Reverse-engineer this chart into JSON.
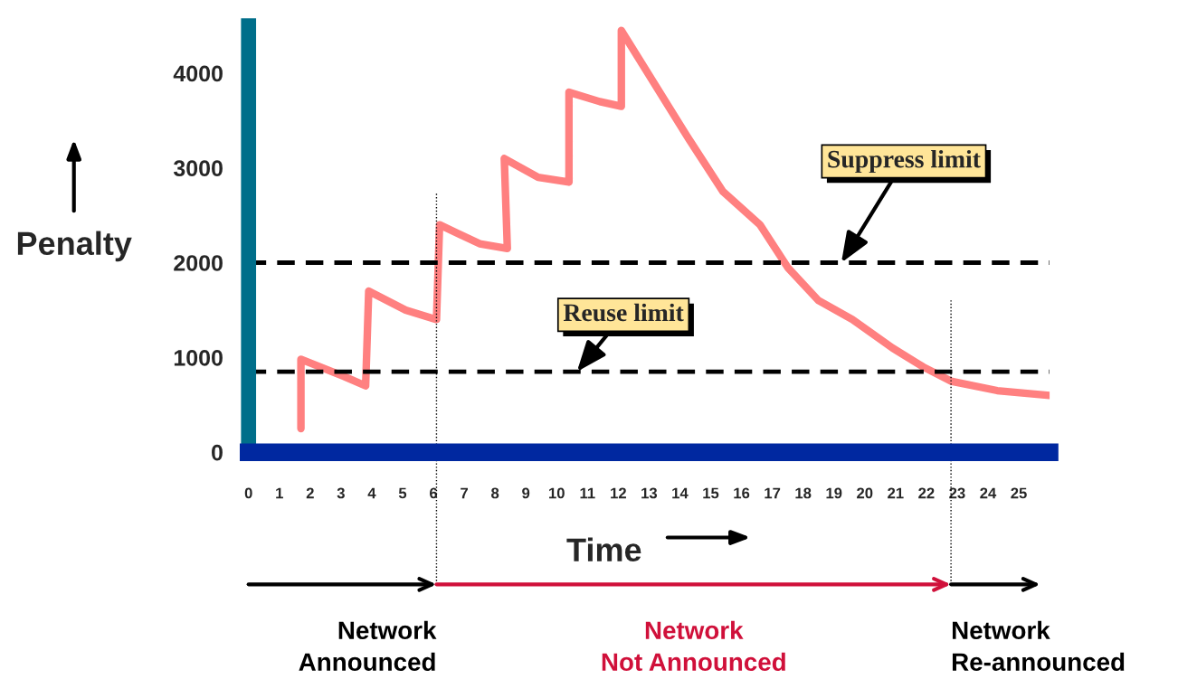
{
  "chart_data": {
    "type": "line",
    "xlabel": "Time",
    "ylabel": "Penalty",
    "x": [
      1.7,
      1.7,
      3.1,
      3.8,
      3.9,
      5.1,
      6.1,
      6.2,
      7.5,
      8.4,
      8.3,
      9.4,
      10.4,
      10.4,
      11.4,
      12.1,
      12.1,
      14.3,
      15.4,
      16.6,
      17.5,
      18.5,
      19.6,
      20.9,
      21.9,
      22.8,
      24.3,
      26.0
    ],
    "series": [
      {
        "color": "#ff8080",
        "values": [
          250,
          980,
          800,
          700,
          1700,
          1500,
          1400,
          2400,
          2200,
          2150,
          3100,
          2900,
          2850,
          3800,
          3700,
          3650,
          4450,
          3300,
          2750,
          2400,
          1950,
          1600,
          1400,
          1100,
          900,
          750,
          650,
          600
        ]
      }
    ],
    "xlim": [
      0,
      26
    ],
    "xticks": [
      0,
      1,
      2,
      3,
      4,
      5,
      6,
      7,
      8,
      9,
      10,
      11,
      12,
      13,
      14,
      15,
      16,
      17,
      18,
      19,
      20,
      21,
      22,
      23,
      24,
      25
    ],
    "ylim": [
      0,
      4500
    ],
    "yticks": [
      0,
      1000,
      2000,
      3000,
      4000
    ],
    "ref_lines": [
      {
        "axis": "y",
        "value": 2000,
        "label": "Suppress limit",
        "line_style": "dashed"
      },
      {
        "axis": "y",
        "value": 850,
        "label": "Reuse limit",
        "line_style": "dashed"
      },
      {
        "axis": "x",
        "value": 6.1,
        "line_style": "dotted"
      },
      {
        "axis": "x",
        "value": 22.8,
        "line_style": "dotted"
      }
    ],
    "annotations": [
      "Network\nAnnounced",
      "Network\nNot Announced",
      "Network\nRe-announced"
    ],
    "grid": false,
    "legend": false,
    "marker": "none",
    "line_style": "solid"
  }
}
